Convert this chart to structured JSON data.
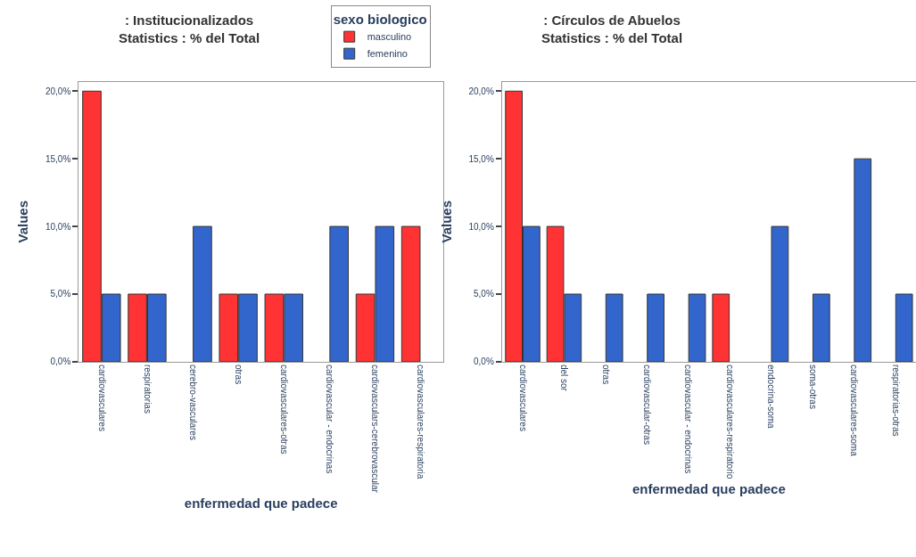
{
  "chart_data": [
    {
      "type": "bar",
      "title": ": Institucionalizados\nStatistics : % del Total",
      "xlabel": "enfermedad que padece",
      "ylabel": "Values",
      "legend_title": "sexo biologico",
      "legend": "top right",
      "categories": [
        "cardiovasculares",
        "respiratorias",
        "cerebro-vasculares",
        "otras",
        "cardiovasculares-otras",
        "cardiovascular - endocrinas",
        "cardiovasculars-cerebrovascular",
        "cardiovasculares-respiratoria"
      ],
      "ylim": [
        0,
        20.7
      ],
      "yticks": [
        {
          "value": 0,
          "label": "0,0%"
        },
        {
          "value": 5,
          "label": "5,0%"
        },
        {
          "value": 10,
          "label": "10,0%"
        },
        {
          "value": 15,
          "label": "15,0%"
        },
        {
          "value": 20,
          "label": "20,0%"
        }
      ],
      "series": [
        {
          "name": "masculino",
          "color": "#ff3333",
          "values": [
            20,
            5,
            null,
            5,
            5,
            null,
            5,
            10
          ]
        },
        {
          "name": "femenino",
          "color": "#3366cc",
          "values": [
            5,
            5,
            10,
            5,
            5,
            10,
            10,
            null
          ]
        }
      ]
    },
    {
      "type": "bar",
      "title": ": Círculos de Abuelos\nStatistics : % del Total",
      "xlabel": "enfermedad que padece",
      "ylabel": "Values",
      "legend": false,
      "categories": [
        "cardiovasculares",
        "del sor",
        "otras",
        "cardiovascular-otras",
        "cardiovascular - endocrinas",
        "cardiovasculares-respiratorio",
        "endocrina-soma",
        "soma-otras",
        "cardiovasculares-soma",
        "respiratorias-otras"
      ],
      "ylim": [
        0,
        20.7
      ],
      "yticks": [
        {
          "value": 0,
          "label": "0,0%"
        },
        {
          "value": 5,
          "label": "5,0%"
        },
        {
          "value": 10,
          "label": "10,0%"
        },
        {
          "value": 15,
          "label": "15,0%"
        },
        {
          "value": 20,
          "label": "20,0%"
        }
      ],
      "series": [
        {
          "color": "#ff3333",
          "values": [
            20,
            10,
            null,
            null,
            null,
            5,
            null,
            null,
            null,
            null
          ]
        },
        {
          "color": "#3366cc",
          "values": [
            10,
            5,
            5,
            5,
            5,
            null,
            10,
            5,
            15,
            5
          ]
        }
      ]
    }
  ]
}
